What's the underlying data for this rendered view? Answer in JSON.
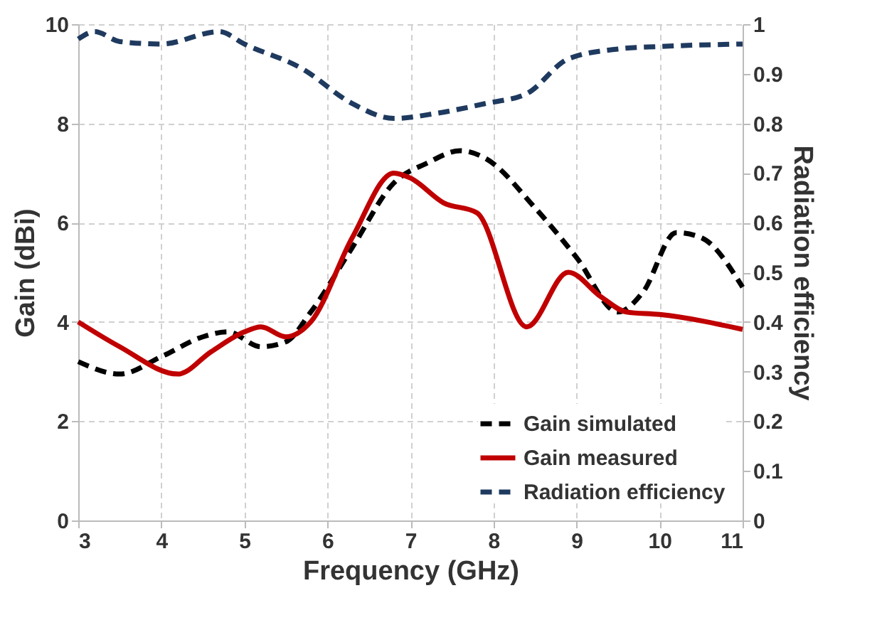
{
  "chart_data": {
    "type": "line",
    "xlabel": "Frequency (GHz)",
    "ylabel": "Gain (dBi)",
    "y2label": "Radiation efficiency",
    "xlim": [
      3,
      11
    ],
    "xticks": [
      3,
      4,
      5,
      6,
      7,
      8,
      9,
      10,
      11
    ],
    "ylim": [
      0,
      10
    ],
    "yticks": [
      0,
      2,
      4,
      6,
      8,
      10
    ],
    "y2lim": [
      0,
      1
    ],
    "y2ticks": [
      0,
      0.1,
      0.2,
      0.3,
      0.4,
      0.5,
      0.6,
      0.7,
      0.8,
      0.9,
      1
    ],
    "grid": true,
    "legend": "bottom right",
    "series": [
      {
        "name": "Gain simulated",
        "color": "#000000",
        "line_style": "dashed",
        "x": [
          3,
          3.5,
          4,
          4.5,
          4.8,
          5.2,
          5.5,
          5.8,
          6.3,
          6.8,
          7.2,
          7.6,
          7.9,
          8.5,
          9,
          9.5,
          9.8,
          10.2,
          10.5,
          11
        ],
        "values": [
          3.2,
          2.95,
          3.3,
          3.7,
          3.8,
          3.5,
          3.6,
          4.2,
          5.5,
          6.8,
          7.2,
          7.45,
          7.3,
          6.3,
          5.3,
          4.2,
          4.6,
          5.8,
          5.7,
          4.7
        ]
      },
      {
        "name": "Gain measured",
        "color": "#c00000",
        "line_style": "solid",
        "x": [
          3,
          3.5,
          4.2,
          4.6,
          5,
          5.2,
          5.5,
          5.8,
          6.3,
          6.8,
          7,
          7.4,
          7.8,
          8.4,
          8.9,
          9.3,
          9.6,
          10,
          11
        ],
        "values": [
          4,
          3.5,
          2.95,
          3.4,
          3.8,
          3.9,
          3.7,
          4,
          5.7,
          7,
          6.9,
          6.4,
          6.2,
          3.9,
          5,
          4.5,
          4.2,
          4.15,
          3.85
        ]
      },
      {
        "name": "Radiation efficiency",
        "color": "#1f3a5f",
        "line_style": "dashed",
        "axis": "y2",
        "x": [
          3,
          3.2,
          3.5,
          4,
          4.7,
          5,
          5.7,
          6.3,
          6.8,
          7.3,
          7.9,
          8.4,
          8.9,
          9.5,
          10,
          11
        ],
        "values": [
          0.97,
          0.985,
          0.965,
          0.96,
          0.985,
          0.96,
          0.91,
          0.84,
          0.81,
          0.82,
          0.84,
          0.86,
          0.93,
          0.95,
          0.955,
          0.96
        ]
      }
    ]
  }
}
